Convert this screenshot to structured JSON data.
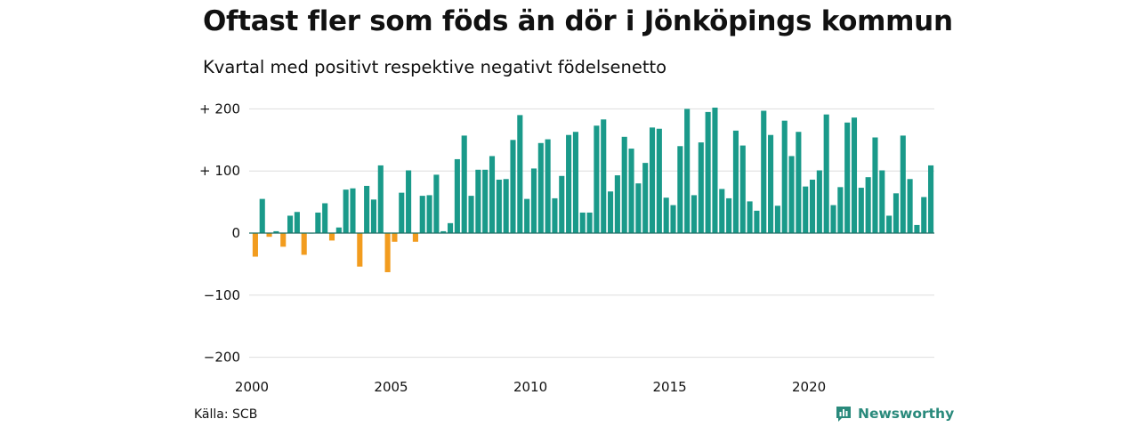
{
  "title": "Oftast fler som föds än dör i Jönköpings kommun",
  "subtitle": "Kvartal med positivt respektive negativt födelsenetto",
  "source": "Källa: SCB",
  "brand": "Newsworthy",
  "colors": {
    "positive": "#1a9a8a",
    "negative": "#f29c1e",
    "grid": "#dddddd",
    "brand": "#2a8a7c"
  },
  "chart_data": {
    "type": "bar",
    "title": "Oftast fler som föds än dör i Jönköpings kommun",
    "subtitle": "Kvartal med positivt respektive negativt födelsenetto",
    "xlabel": "",
    "ylabel": "",
    "ylim": [
      -200,
      200
    ],
    "yticks": [
      200,
      100,
      0,
      -100,
      -200
    ],
    "ytick_labels": [
      "+ 200",
      "+ 100",
      "0",
      "−100",
      "−200"
    ],
    "xticks": [
      2000,
      2005,
      2010,
      2015,
      2020
    ],
    "grid": true,
    "x_start_year": 2000,
    "periods_per_year": 4,
    "values": [
      -38,
      55,
      -6,
      3,
      -22,
      28,
      34,
      -35,
      0,
      33,
      48,
      -12,
      9,
      70,
      72,
      -54,
      76,
      54,
      109,
      -63,
      -14,
      65,
      101,
      -14,
      60,
      61,
      94,
      3,
      16,
      119,
      157,
      60,
      102,
      102,
      124,
      86,
      87,
      150,
      190,
      55,
      104,
      145,
      151,
      56,
      92,
      158,
      163,
      33,
      33,
      173,
      183,
      67,
      93,
      155,
      136,
      80,
      113,
      170,
      168,
      57,
      45,
      140,
      200,
      61,
      146,
      195,
      202,
      71,
      56,
      165,
      141,
      51,
      36,
      197,
      158,
      44,
      181,
      124,
      163,
      75,
      86,
      101,
      191,
      45,
      74,
      178,
      186,
      73,
      90,
      154,
      101,
      28,
      64,
      157,
      87,
      13,
      58,
      109
    ]
  }
}
